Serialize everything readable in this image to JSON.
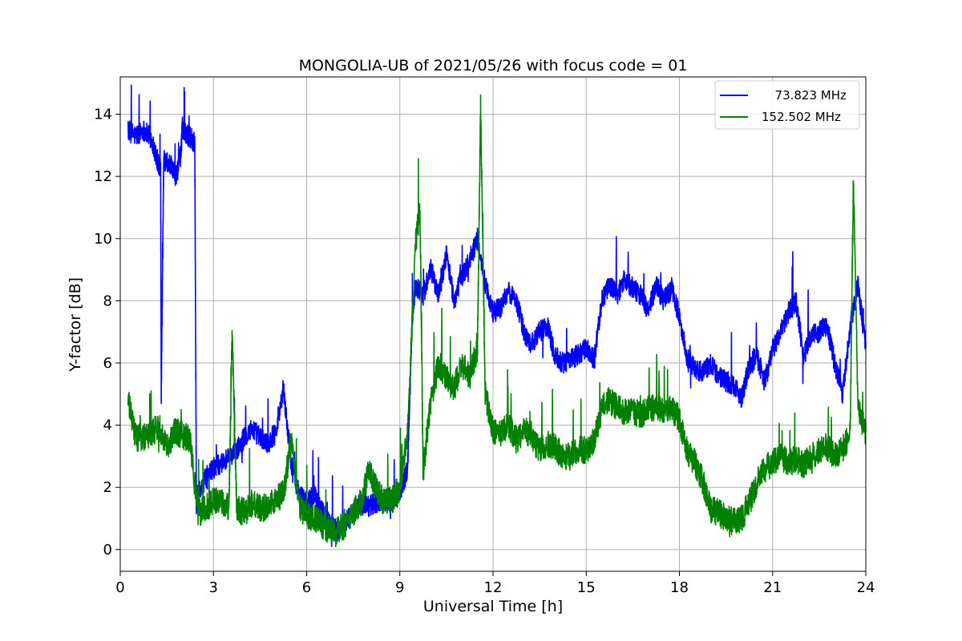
{
  "chart_data": {
    "type": "line",
    "title": "MONGOLIA-UB of 2021/05/26 with focus code = 01",
    "xlabel": "Universal Time [h]",
    "ylabel": "Y-factor [dB]",
    "xlim": [
      0,
      24
    ],
    "ylim": [
      -0.7,
      15.2
    ],
    "xticks": [
      0,
      3,
      6,
      9,
      12,
      15,
      18,
      21,
      24
    ],
    "yticks": [
      0,
      2,
      4,
      6,
      8,
      10,
      12,
      14
    ],
    "grid": true,
    "legend": "upper right",
    "series": [
      {
        "name": "  73.823 MHz",
        "color": "#0000ff",
        "x": [
          0.25,
          0.5,
          0.75,
          1.0,
          1.2,
          1.3,
          1.32,
          1.4,
          1.6,
          1.8,
          1.95,
          2.0,
          2.1,
          2.3,
          2.4,
          2.45,
          2.5,
          2.75,
          3.0,
          3.25,
          3.5,
          3.75,
          4.0,
          4.25,
          4.5,
          4.75,
          5.0,
          5.25,
          5.5,
          5.75,
          6.0,
          6.25,
          6.5,
          6.75,
          7.0,
          7.25,
          7.5,
          7.75,
          8.0,
          8.25,
          8.5,
          8.75,
          9.0,
          9.25,
          9.4,
          9.5,
          9.75,
          10.0,
          10.25,
          10.5,
          10.75,
          11.0,
          11.25,
          11.5,
          11.75,
          12.0,
          12.25,
          12.5,
          12.75,
          13.0,
          13.25,
          13.5,
          13.75,
          14.0,
          14.25,
          14.5,
          14.75,
          15.0,
          15.25,
          15.5,
          15.75,
          16.0,
          16.25,
          16.5,
          16.75,
          17.0,
          17.25,
          17.5,
          17.75,
          18.0,
          18.25,
          18.5,
          18.75,
          19.0,
          19.25,
          19.5,
          19.75,
          20.0,
          20.25,
          20.5,
          20.75,
          21.0,
          21.25,
          21.5,
          21.75,
          22.0,
          22.25,
          22.5,
          22.75,
          23.0,
          23.25,
          23.5,
          23.75,
          24.0
        ],
        "values": [
          13.5,
          13.3,
          13.5,
          13.2,
          12.5,
          12.3,
          5.0,
          12.5,
          12.4,
          12.0,
          12.7,
          13.6,
          13.4,
          13.2,
          13.1,
          1.5,
          1.8,
          2.3,
          2.6,
          2.8,
          2.9,
          3.2,
          3.6,
          3.9,
          3.6,
          3.4,
          3.8,
          5.2,
          2.8,
          1.8,
          1.5,
          1.8,
          1.2,
          0.8,
          0.6,
          0.9,
          1.2,
          1.4,
          1.4,
          1.5,
          1.6,
          1.5,
          1.8,
          2.6,
          7.5,
          8.5,
          8.2,
          9.0,
          8.2,
          9.5,
          8.0,
          8.8,
          9.3,
          10.0,
          8.5,
          7.6,
          7.8,
          8.3,
          8.0,
          7.0,
          6.6,
          7.0,
          7.2,
          6.2,
          6.0,
          6.1,
          6.3,
          6.5,
          6.1,
          8.0,
          8.5,
          8.2,
          8.7,
          8.4,
          8.2,
          7.7,
          8.5,
          8.0,
          8.4,
          7.5,
          6.1,
          5.8,
          5.7,
          6.0,
          5.6,
          5.4,
          5.3,
          4.9,
          5.9,
          6.2,
          5.4,
          6.4,
          7.0,
          7.6,
          8.0,
          6.2,
          6.9,
          7.0,
          7.2,
          6.0,
          5.0,
          7.2,
          8.5,
          6.5
        ]
      },
      {
        "name": "152.502 MHz",
        "color": "#008000",
        "x": [
          0.25,
          0.5,
          0.75,
          1.0,
          1.25,
          1.5,
          1.75,
          2.0,
          2.25,
          2.5,
          2.75,
          3.0,
          3.25,
          3.5,
          3.6,
          3.75,
          4.0,
          4.25,
          4.5,
          4.75,
          5.0,
          5.25,
          5.5,
          5.75,
          6.0,
          6.25,
          6.5,
          6.75,
          7.0,
          7.25,
          7.5,
          7.75,
          8.0,
          8.25,
          8.5,
          8.75,
          9.0,
          9.25,
          9.5,
          9.65,
          9.75,
          10.0,
          10.25,
          10.5,
          10.75,
          11.0,
          11.25,
          11.5,
          11.6,
          11.75,
          12.0,
          12.25,
          12.5,
          12.75,
          13.0,
          13.25,
          13.5,
          13.75,
          14.0,
          14.25,
          14.5,
          14.75,
          15.0,
          15.25,
          15.5,
          15.75,
          16.0,
          16.25,
          16.5,
          16.75,
          17.0,
          17.25,
          17.5,
          17.75,
          18.0,
          18.25,
          18.5,
          18.75,
          19.0,
          19.25,
          19.5,
          19.75,
          20.0,
          20.25,
          20.5,
          20.75,
          21.0,
          21.25,
          21.5,
          21.75,
          22.0,
          22.25,
          22.5,
          22.75,
          23.0,
          23.25,
          23.5,
          23.6,
          23.75,
          24.0
        ],
        "values": [
          4.8,
          3.6,
          3.6,
          3.7,
          4.0,
          3.3,
          3.8,
          3.7,
          3.5,
          1.2,
          1.3,
          1.6,
          1.5,
          1.4,
          7.0,
          1.3,
          1.2,
          1.5,
          1.3,
          1.4,
          1.6,
          1.8,
          3.5,
          1.4,
          1.1,
          1.0,
          0.8,
          0.6,
          0.6,
          0.8,
          1.2,
          1.5,
          2.5,
          1.9,
          1.5,
          1.6,
          2.0,
          3.8,
          9.8,
          11.0,
          2.5,
          4.8,
          6.0,
          5.5,
          5.2,
          6.0,
          5.5,
          6.5,
          14.2,
          5.0,
          3.8,
          3.7,
          4.0,
          3.5,
          3.9,
          3.5,
          3.2,
          3.4,
          3.3,
          3.0,
          3.0,
          3.2,
          3.2,
          3.5,
          4.5,
          4.8,
          4.6,
          4.4,
          4.5,
          4.3,
          4.5,
          4.6,
          4.4,
          4.5,
          4.2,
          3.2,
          2.8,
          2.2,
          1.3,
          1.2,
          1.0,
          0.9,
          1.0,
          1.5,
          2.2,
          2.6,
          2.8,
          3.0,
          2.8,
          2.9,
          2.7,
          3.0,
          3.2,
          3.3,
          3.0,
          3.2,
          3.7,
          12.0,
          4.5,
          3.8
        ]
      }
    ]
  }
}
